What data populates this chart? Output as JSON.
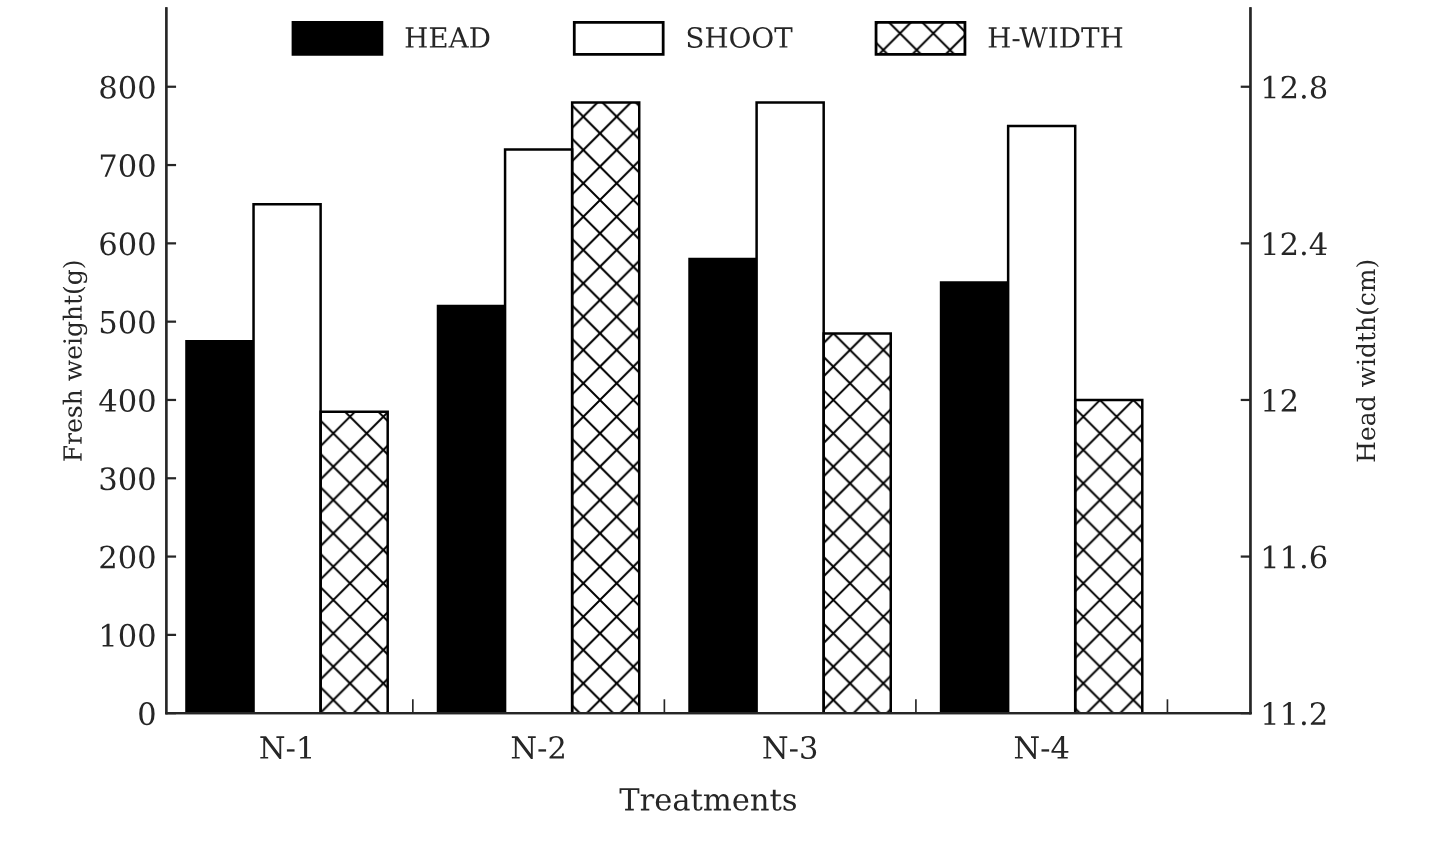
{
  "chart_data": {
    "type": "bar",
    "xlabel": "Treatments",
    "ylabel": "Fresh weight(g)",
    "y2label": "Head width(cm)",
    "categories": [
      "N-1",
      "N-2",
      "N-3",
      "N-4"
    ],
    "series": [
      {
        "name": "HEAD",
        "color": "#000000",
        "values": [
          475,
          520,
          580,
          550
        ]
      },
      {
        "name": "SHOOT",
        "color": "#ffffff",
        "values": [
          650,
          720,
          780,
          750
        ]
      },
      {
        "name": "H-WIDTH",
        "color": "#000000",
        "axis": "y2",
        "values": [
          11.97,
          12.76,
          12.17,
          12.0
        ]
      }
    ],
    "ylim": [
      0,
      900
    ],
    "yticks": [
      0,
      100,
      200,
      300,
      400,
      500,
      600,
      700,
      800
    ],
    "y2lim": [
      11.2,
      13.0
    ],
    "y2ticks": [
      {
        "value": 11.2,
        "label": "11.2"
      },
      {
        "value": 11.6,
        "label": "11.6"
      },
      {
        "value": 12.0,
        "label": "12"
      },
      {
        "value": 12.4,
        "label": "12.4"
      },
      {
        "value": 12.8,
        "label": "12.8"
      }
    ],
    "legend": "top",
    "grid": false
  }
}
